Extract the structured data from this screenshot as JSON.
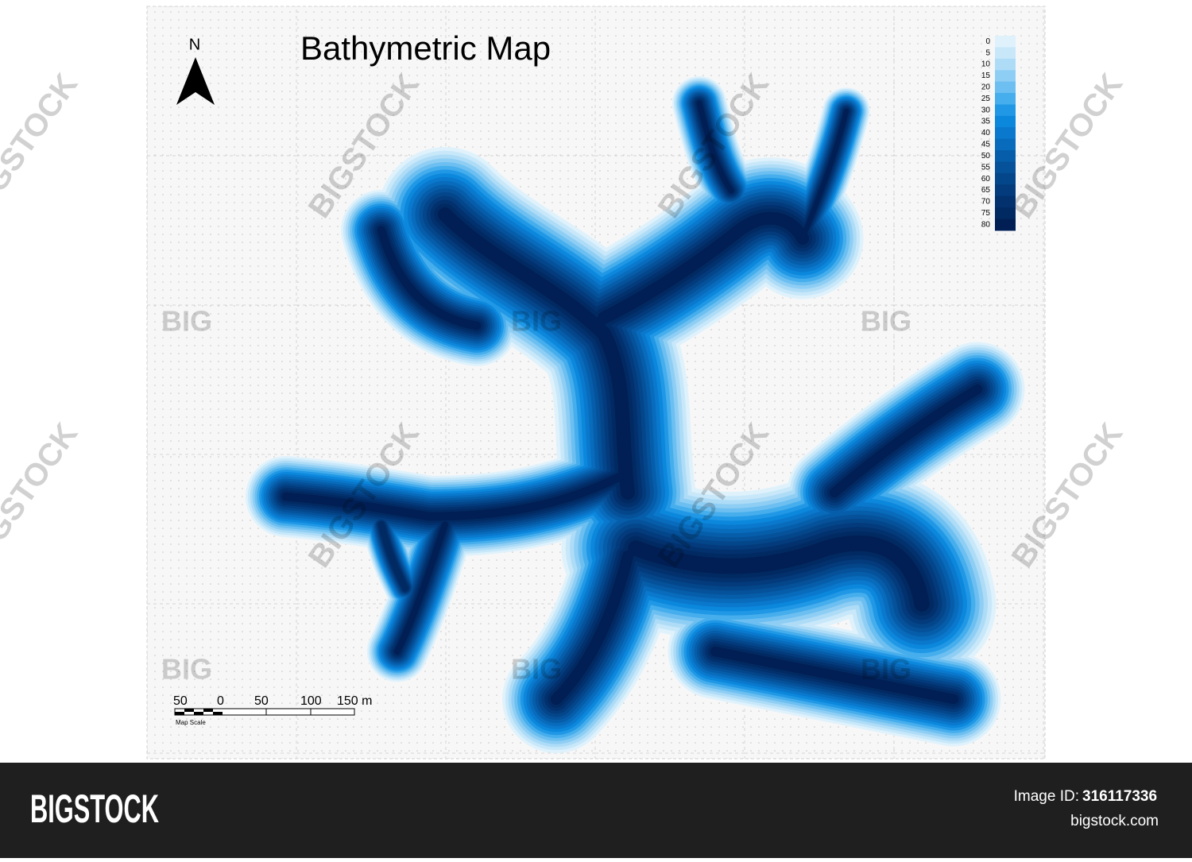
{
  "header": {
    "title": "Bathymetric Map",
    "north": "N"
  },
  "legend": {
    "items": [
      {
        "label": "0",
        "color": "#dff2fc"
      },
      {
        "label": "5",
        "color": "#c8e8fa"
      },
      {
        "label": "10",
        "color": "#aedcf7"
      },
      {
        "label": "15",
        "color": "#8fcef4"
      },
      {
        "label": "20",
        "color": "#6cbff0"
      },
      {
        "label": "25",
        "color": "#46aeec"
      },
      {
        "label": "30",
        "color": "#2198e6"
      },
      {
        "label": "35",
        "color": "#0b87dc"
      },
      {
        "label": "40",
        "color": "#0a78cc"
      },
      {
        "label": "45",
        "color": "#086bbb"
      },
      {
        "label": "50",
        "color": "#065eaa"
      },
      {
        "label": "55",
        "color": "#05519a"
      },
      {
        "label": "60",
        "color": "#04468a"
      },
      {
        "label": "65",
        "color": "#033b7c"
      },
      {
        "label": "70",
        "color": "#02316e"
      },
      {
        "label": "75",
        "color": "#022a62"
      },
      {
        "label": "80",
        "color": "#011f55"
      }
    ]
  },
  "scale": {
    "labels": [
      "50",
      "0",
      "50",
      "100",
      "150 m"
    ],
    "caption": "Map Scale"
  },
  "watermark": {
    "large": "BIGSTOCK",
    "small": "BIG"
  },
  "footer": {
    "brand": "BIGSTOCK",
    "id_label": "Image ID:",
    "id": "316117336",
    "site": "bigstock.com"
  }
}
